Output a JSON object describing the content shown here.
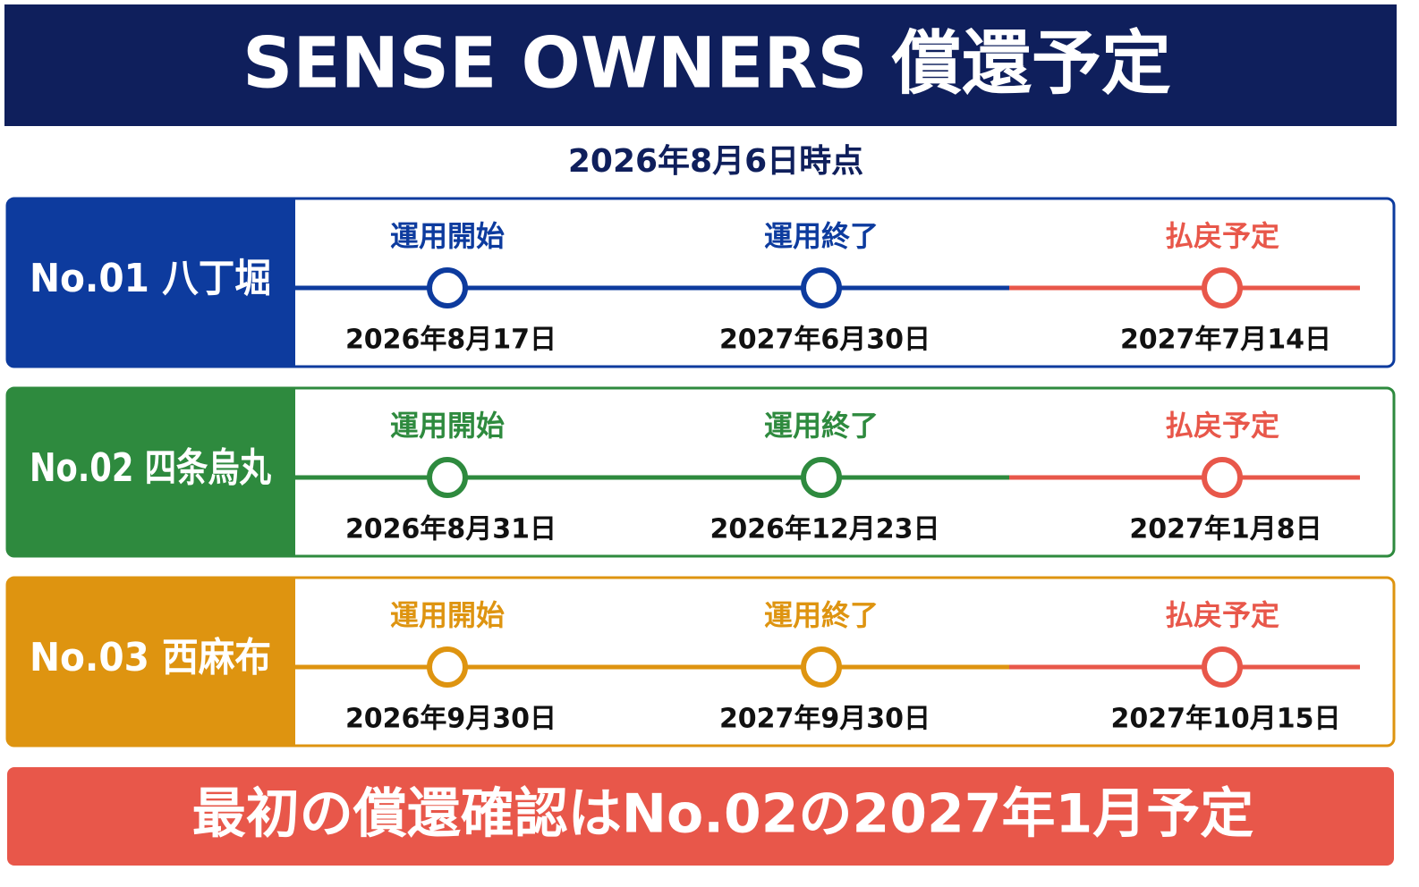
{
  "header": {
    "title": "SENSE OWNERS 償還予定",
    "as_of": "2026年8月6日時点"
  },
  "rows": [
    {
      "label": "No.01 八丁堀",
      "milestones": [
        {
          "label": "運用開始",
          "date": "2026年8月17日"
        },
        {
          "label": "運用終了",
          "date": "2027年6月30日"
        },
        {
          "label": "払戻予定",
          "date": "2027年7月14日"
        }
      ]
    },
    {
      "label": "No.02 四条烏丸",
      "milestones": [
        {
          "label": "運用開始",
          "date": "2026年8月31日"
        },
        {
          "label": "運用終了",
          "date": "2026年12月23日"
        },
        {
          "label": "払戻予定",
          "date": "2027年1月8日"
        }
      ]
    },
    {
      "label": "No.03 西麻布",
      "milestones": [
        {
          "label": "運用開始",
          "date": "2026年9月30日"
        },
        {
          "label": "運用終了",
          "date": "2027年9月30日"
        },
        {
          "label": "払戻予定",
          "date": "2027年10月15日"
        }
      ]
    }
  ],
  "footer": "最初の償還確認はNo.02の2027年1月予定"
}
